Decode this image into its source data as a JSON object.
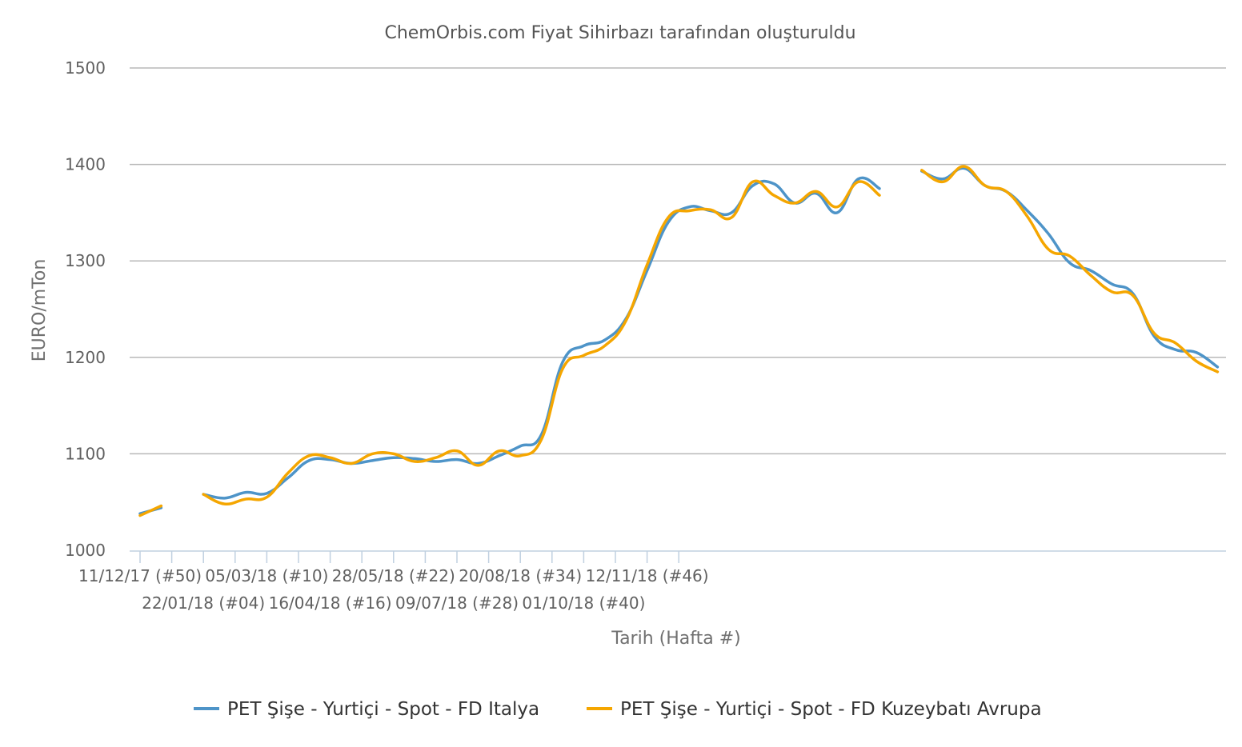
{
  "chart_data": {
    "type": "line",
    "title": "ChemOrbis.com Fiyat Sihirbazı tarafından oluşturuldu",
    "xlabel": "Tarih (Hafta #)",
    "ylabel": "EURO/mTon",
    "ylim": [
      1000,
      1500
    ],
    "yticks": [
      1000,
      1100,
      1200,
      1300,
      1400,
      1500
    ],
    "grid": true,
    "legend_position": "bottom",
    "xticks": [
      "11/12/17 (#50)",
      "22/01/18 (#04)",
      "05/03/18 (#10)",
      "16/04/18 (#16)",
      "28/05/18 (#22)",
      "09/07/18 (#28)",
      "20/08/18 (#34)",
      "01/10/18 (#40)",
      "12/11/18 (#46)"
    ],
    "x_weeks_per_tick": 6,
    "x_unit": "weeks from 11/12/17",
    "series": [
      {
        "name": "PET Şişe - Yurtiçi - Spot - FD Italya",
        "color": "#4e94c8",
        "segments": [
          [
            [
              0,
              1038
            ],
            [
              2,
              1044
            ]
          ],
          [
            [
              6,
              1058
            ],
            [
              8,
              1054
            ],
            [
              10,
              1060
            ],
            [
              12,
              1059
            ],
            [
              14,
              1075
            ],
            [
              16,
              1093
            ],
            [
              18,
              1094
            ],
            [
              20,
              1090
            ],
            [
              22,
              1093
            ],
            [
              24,
              1096
            ],
            [
              26,
              1095
            ],
            [
              28,
              1092
            ],
            [
              30,
              1094
            ],
            [
              32,
              1090
            ],
            [
              34,
              1098
            ],
            [
              36,
              1108
            ],
            [
              38,
              1120
            ],
            [
              40,
              1195
            ],
            [
              42,
              1212
            ],
            [
              44,
              1218
            ],
            [
              46,
              1240
            ],
            [
              48,
              1290
            ],
            [
              50,
              1340
            ],
            [
              52,
              1356
            ],
            [
              54,
              1352
            ],
            [
              56,
              1350
            ],
            [
              58,
              1378
            ],
            [
              60,
              1380
            ],
            [
              62,
              1360
            ],
            [
              64,
              1370
            ],
            [
              66,
              1350
            ],
            [
              68,
              1385
            ],
            [
              70,
              1375
            ]
          ],
          [
            [
              74,
              1393
            ],
            [
              76,
              1385
            ],
            [
              78,
              1396
            ],
            [
              80,
              1378
            ],
            [
              82,
              1372
            ],
            [
              84,
              1352
            ],
            [
              86,
              1328
            ],
            [
              88,
              1298
            ],
            [
              90,
              1290
            ],
            [
              92,
              1276
            ],
            [
              94,
              1266
            ],
            [
              96,
              1222
            ],
            [
              98,
              1208
            ],
            [
              100,
              1205
            ],
            [
              102,
              1190
            ]
          ]
        ]
      },
      {
        "name": "PET Şişe - Yurtiçi - Spot - FD Kuzeybatı Avrupa",
        "color": "#f5a600",
        "segments": [
          [
            [
              0,
              1036
            ],
            [
              2,
              1046
            ]
          ],
          [
            [
              6,
              1058
            ],
            [
              8,
              1048
            ],
            [
              10,
              1053
            ],
            [
              12,
              1055
            ],
            [
              14,
              1080
            ],
            [
              16,
              1098
            ],
            [
              18,
              1096
            ],
            [
              20,
              1090
            ],
            [
              22,
              1100
            ],
            [
              24,
              1100
            ],
            [
              26,
              1092
            ],
            [
              28,
              1096
            ],
            [
              30,
              1103
            ],
            [
              32,
              1088
            ],
            [
              34,
              1103
            ],
            [
              36,
              1098
            ],
            [
              38,
              1115
            ],
            [
              40,
              1188
            ],
            [
              42,
              1202
            ],
            [
              44,
              1212
            ],
            [
              46,
              1238
            ],
            [
              48,
              1296
            ],
            [
              50,
              1345
            ],
            [
              52,
              1352
            ],
            [
              54,
              1353
            ],
            [
              56,
              1345
            ],
            [
              58,
              1382
            ],
            [
              60,
              1368
            ],
            [
              62,
              1360
            ],
            [
              64,
              1372
            ],
            [
              66,
              1356
            ],
            [
              68,
              1382
            ],
            [
              70,
              1368
            ]
          ],
          [
            [
              74,
              1394
            ],
            [
              76,
              1382
            ],
            [
              78,
              1398
            ],
            [
              80,
              1378
            ],
            [
              82,
              1372
            ],
            [
              84,
              1346
            ],
            [
              86,
              1312
            ],
            [
              88,
              1305
            ],
            [
              90,
              1285
            ],
            [
              92,
              1268
            ],
            [
              94,
              1264
            ],
            [
              96,
              1225
            ],
            [
              98,
              1215
            ],
            [
              100,
              1196
            ],
            [
              102,
              1185
            ]
          ]
        ]
      }
    ]
  }
}
